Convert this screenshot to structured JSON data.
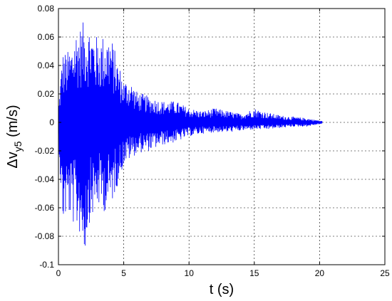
{
  "chart_data": {
    "type": "line",
    "title": "",
    "xlabel": "t (s)",
    "ylabel": {
      "prefix": "Δv",
      "subscript": "y5",
      "suffix": " (m/s)"
    },
    "xlim": [
      0,
      25
    ],
    "ylim": [
      -0.1,
      0.08
    ],
    "xticks": [
      "0",
      "5",
      "10",
      "15",
      "20",
      "25"
    ],
    "yticks": [
      "0.08",
      "0.06",
      "0.04",
      "0.02",
      "0",
      "-0.02",
      "-0.04",
      "-0.06",
      "-0.08",
      "-0.1"
    ],
    "grid": true,
    "series": [
      {
        "color": "#0000ff",
        "t_end": 20.2,
        "envelope": {
          "t": [
            0,
            0.3,
            0.7,
            1.0,
            1.3,
            1.7,
            2.0,
            2.3,
            3.0,
            3.5,
            4.0,
            4.5,
            5.0,
            5.5,
            6.0,
            7.0,
            8.0,
            9.0,
            10.0,
            11.0,
            12.0,
            13.0,
            14.0,
            15.0,
            16.0,
            17.0,
            18.0,
            19.0,
            20.2
          ],
          "upper": [
            0.01,
            0.05,
            0.05,
            0.055,
            0.066,
            0.068,
            0.072,
            0.07,
            0.06,
            0.062,
            0.062,
            0.045,
            0.03,
            0.03,
            0.022,
            0.018,
            0.015,
            0.015,
            0.01,
            0.008,
            0.01,
            0.008,
            0.006,
            0.01,
            0.007,
            0.005,
            0.004,
            0.003,
            0.001
          ],
          "lower": [
            -0.01,
            -0.073,
            -0.065,
            -0.07,
            -0.075,
            -0.08,
            -0.095,
            -0.072,
            -0.06,
            -0.063,
            -0.06,
            -0.045,
            -0.03,
            -0.026,
            -0.022,
            -0.02,
            -0.016,
            -0.014,
            -0.01,
            -0.008,
            -0.007,
            -0.007,
            -0.006,
            -0.005,
            -0.005,
            -0.004,
            -0.003,
            -0.003,
            -0.001
          ]
        }
      }
    ]
  }
}
